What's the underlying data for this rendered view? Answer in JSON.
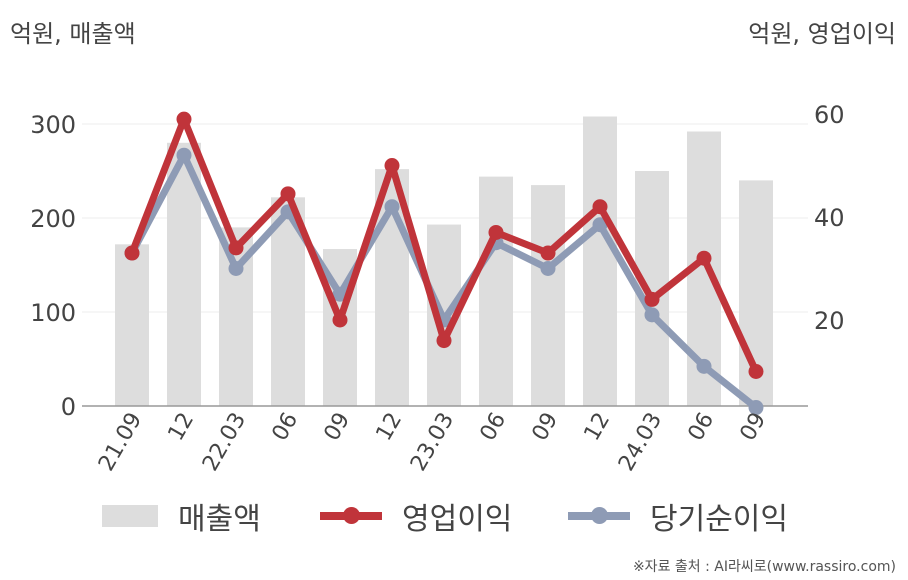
{
  "units": {
    "left": "억원, 매출액",
    "right": "억원, 영업이익"
  },
  "source": "※자료 출처 : AI라씨로(www.rassiro.com)",
  "colors": {
    "sales": "#dddddd",
    "operating_profit": "#c0343a",
    "net_profit": "#8e9bb5",
    "grid": "#ececec",
    "axis": "#999999"
  },
  "chart_data": {
    "type": "bar+line",
    "categories": [
      "21.09",
      "12",
      "22.03",
      "06",
      "09",
      "12",
      "23.03",
      "06",
      "09",
      "12",
      "24.03",
      "06",
      "09"
    ],
    "y_left": {
      "ticks": [
        0,
        100,
        200,
        300
      ],
      "range": [
        0,
        350
      ]
    },
    "y_right": {
      "ticks": [
        20,
        40,
        60
      ],
      "range": [
        3,
        62
      ]
    },
    "series": [
      {
        "name": "매출액",
        "type": "bar",
        "axis": "left",
        "values": [
          172,
          280,
          190,
          222,
          167,
          252,
          193,
          244,
          235,
          308,
          250,
          292,
          240
        ]
      },
      {
        "name": "영업이익",
        "type": "line",
        "axis": "right",
        "values": [
          33,
          59,
          34,
          44.5,
          20,
          50,
          16,
          37,
          33,
          42,
          24,
          32,
          10
        ]
      },
      {
        "name": "당기순이익",
        "type": "line",
        "axis": "right",
        "values": [
          33,
          52,
          30,
          41,
          25,
          42,
          20,
          35,
          30,
          38.5,
          21,
          11,
          3
        ]
      }
    ]
  }
}
